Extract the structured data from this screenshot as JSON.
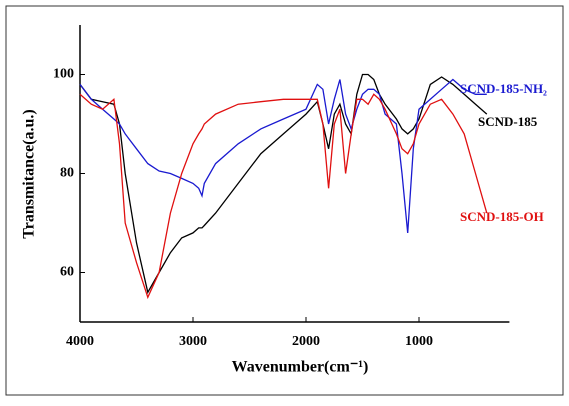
{
  "chart_data": {
    "type": "line",
    "x_label": "Wavenumber(cm⁻¹)",
    "y_label": "Transmitance(a.u.)",
    "x": [
      4000,
      3900,
      3800,
      3700,
      3650,
      3600,
      3500,
      3400,
      3300,
      3200,
      3100,
      3000,
      2950,
      2920,
      2900,
      2800,
      2600,
      2400,
      2200,
      2000,
      1900,
      1850,
      1800,
      1750,
      1700,
      1650,
      1600,
      1550,
      1500,
      1450,
      1400,
      1350,
      1300,
      1200,
      1150,
      1100,
      1050,
      1000,
      900,
      800,
      700,
      600,
      500,
      400
    ],
    "series": [
      {
        "name": "SCND-185",
        "color": "#000000",
        "values": [
          98,
          95,
          94.5,
          94,
          90,
          80,
          66,
          56,
          60,
          64,
          67,
          68,
          69,
          69,
          69.5,
          72,
          78,
          84,
          88,
          92,
          94.5,
          90,
          85,
          92,
          94,
          90,
          88,
          96,
          100,
          100,
          99,
          96,
          94,
          91,
          89,
          88,
          89,
          91,
          98,
          99.5,
          98,
          96,
          94,
          92
        ]
      },
      {
        "name": "SCND-185-NH₂",
        "color": "#1a1ad0",
        "values": [
          98,
          95,
          93,
          91,
          90,
          88,
          85,
          82,
          80.5,
          80,
          79,
          78,
          77,
          75.5,
          78,
          82,
          86,
          89,
          91,
          93,
          98,
          97,
          90,
          95,
          99,
          92,
          89,
          93,
          96,
          97,
          97,
          96,
          92,
          90,
          80,
          68,
          85,
          93,
          95,
          97,
          99,
          97,
          96,
          96
        ]
      },
      {
        "name": "SCND-185-OH",
        "color": "#e01010",
        "values": [
          96,
          94,
          93,
          95,
          86,
          70,
          62,
          55,
          60,
          72,
          80,
          86,
          88,
          89,
          90,
          92,
          94,
          94.5,
          95,
          95,
          95,
          90,
          77,
          90,
          93,
          80,
          88,
          95,
          95,
          94,
          96,
          95,
          93,
          88,
          85,
          84,
          86,
          90,
          94,
          95,
          92,
          88,
          80,
          72
        ]
      }
    ],
    "xlim": [
      4000,
      200
    ],
    "xticks": [
      4000,
      3000,
      2000,
      1000
    ],
    "ylim": [
      50,
      110
    ],
    "yticks": [
      60,
      80,
      100
    ],
    "grid": false
  }
}
